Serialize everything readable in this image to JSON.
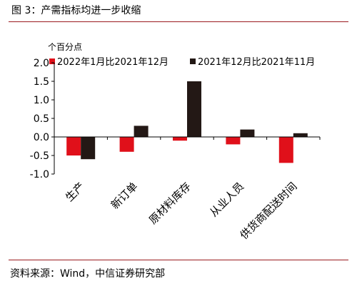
{
  "figure": {
    "title": "图 3：产需指标均进一步收缩",
    "source": "资料来源：Wind，中信证券研究部"
  },
  "colors": {
    "series1": "#e0101a",
    "series2": "#231815"
  },
  "chart_data": {
    "type": "bar",
    "unit_label": "个百分点",
    "categories": [
      "生产",
      "新订单",
      "原材料库存",
      "从业人员",
      "供货商配送时间"
    ],
    "series": [
      {
        "name": "2022年1月比2021年12月",
        "values": [
          -0.5,
          -0.4,
          -0.1,
          -0.2,
          -0.7
        ]
      },
      {
        "name": "2021年12月比2021年11月",
        "values": [
          -0.6,
          0.3,
          1.5,
          0.2,
          0.1
        ]
      }
    ],
    "ylim": [
      -1.0,
      2.0
    ],
    "yticks": [
      "2.0",
      "1.5",
      "1.0",
      "0.5",
      "0.0",
      "-0.5",
      "-1.0"
    ],
    "legend_position": "top",
    "grid": false
  }
}
